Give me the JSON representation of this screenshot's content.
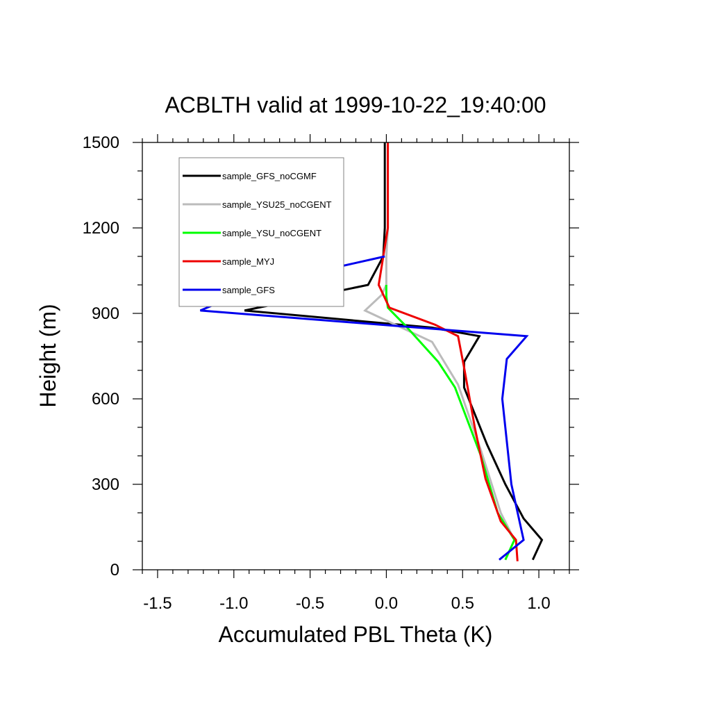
{
  "chart_data": {
    "type": "line",
    "title": "ACBLTH valid at 1999-10-22_19:40:00",
    "xlabel": "Accumulated PBL Theta (K)",
    "ylabel": "Height (m)",
    "xlim": [
      -1.6,
      1.2
    ],
    "ylim": [
      0,
      1500
    ],
    "xticks": [
      -1.5,
      -1.0,
      -0.5,
      0.0,
      0.5,
      1.0
    ],
    "xtick_labels": [
      "-1.5",
      "-1.0",
      "-0.5",
      "0.0",
      "0.5",
      "1.0"
    ],
    "yticks": [
      0,
      300,
      600,
      900,
      1200,
      1500
    ],
    "ytick_labels": [
      "0",
      "300",
      "600",
      "900",
      "1200",
      "1500"
    ],
    "grid": false,
    "legend_placement": "top-left",
    "series": [
      {
        "name": "sample_GFS_noCGMF",
        "color": "#000000",
        "points": [
          [
            0.96,
            35
          ],
          [
            1.02,
            105
          ],
          [
            0.9,
            180
          ],
          [
            0.78,
            300
          ],
          [
            0.66,
            440
          ],
          [
            0.54,
            600
          ],
          [
            0.51,
            640
          ],
          [
            0.51,
            730
          ],
          [
            0.61,
            820
          ],
          [
            0.3,
            850
          ],
          [
            -0.93,
            910
          ],
          [
            -0.12,
            1000
          ],
          [
            -0.02,
            1100
          ],
          [
            -0.01,
            1200
          ],
          [
            -0.01,
            1300
          ],
          [
            -0.01,
            1500
          ]
        ]
      },
      {
        "name": "sample_YSU25_noCGENT",
        "color": "#bbbbbb",
        "points": [
          [
            0.78,
            35
          ],
          [
            0.84,
            105
          ],
          [
            0.75,
            200
          ],
          [
            0.62,
            420
          ],
          [
            0.47,
            650
          ],
          [
            0.3,
            800
          ],
          [
            -0.14,
            910
          ],
          [
            -0.03,
            965
          ],
          [
            0.0,
            1000
          ],
          [
            0.0,
            1100
          ],
          [
            0.01,
            1200
          ],
          [
            0.01,
            1500
          ]
        ]
      },
      {
        "name": "sample_YSU_noCGENT",
        "color": "#00ff00",
        "points": [
          [
            0.78,
            35
          ],
          [
            0.84,
            105
          ],
          [
            0.73,
            200
          ],
          [
            0.62,
            400
          ],
          [
            0.45,
            640
          ],
          [
            0.34,
            730
          ],
          [
            0.12,
            860
          ],
          [
            0.01,
            920
          ],
          [
            0.0,
            960
          ],
          [
            0.0,
            1000
          ]
        ]
      },
      {
        "name": "sample_MYJ",
        "color": "#ee0000",
        "points": [
          [
            0.86,
            30
          ],
          [
            0.85,
            105
          ],
          [
            0.75,
            170
          ],
          [
            0.65,
            320
          ],
          [
            0.58,
            500
          ],
          [
            0.51,
            710
          ],
          [
            0.47,
            820
          ],
          [
            0.32,
            860
          ],
          [
            0.02,
            920
          ],
          [
            -0.05,
            1000
          ],
          [
            -0.02,
            1100
          ],
          [
            0.01,
            1200
          ],
          [
            0.01,
            1500
          ]
        ]
      },
      {
        "name": "sample_GFS",
        "color": "#0000ee",
        "points": [
          [
            0.74,
            35
          ],
          [
            0.9,
            105
          ],
          [
            0.82,
            300
          ],
          [
            0.76,
            600
          ],
          [
            0.79,
            740
          ],
          [
            0.92,
            820
          ],
          [
            -1.22,
            910
          ],
          [
            -0.8,
            1005
          ],
          [
            -0.01,
            1100
          ]
        ]
      }
    ]
  }
}
